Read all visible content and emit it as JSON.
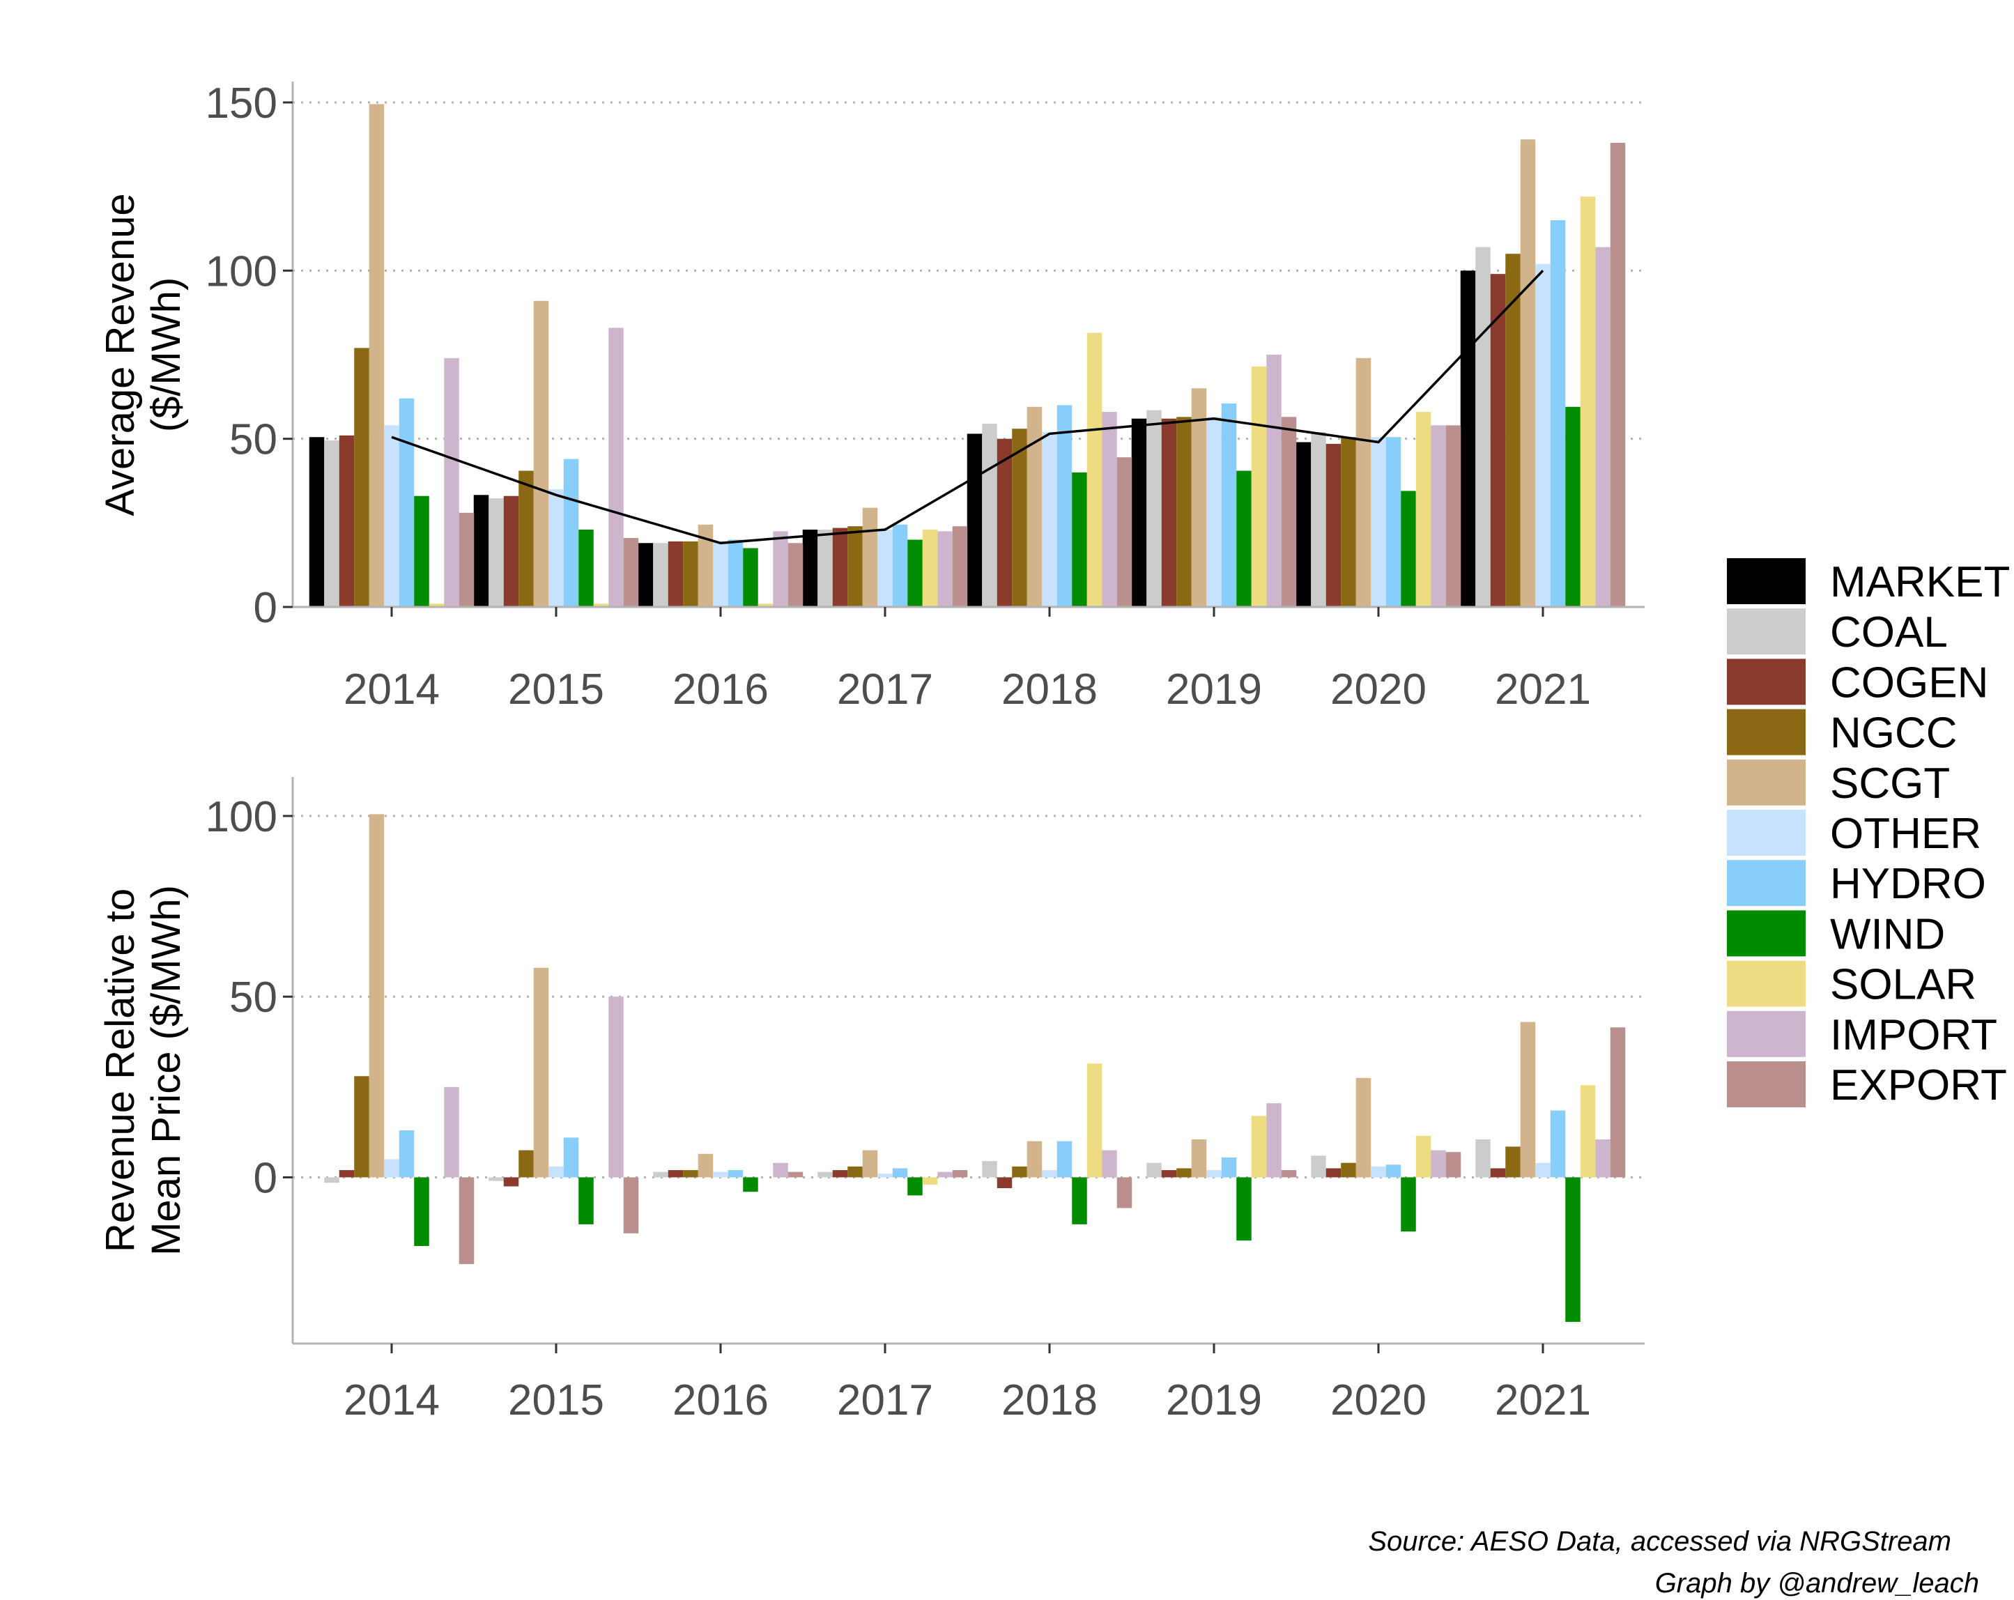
{
  "chart_data": [
    {
      "type": "bar",
      "ylabel_lines": [
        "Average Revenue",
        "($/MWh)"
      ],
      "categories": [
        "2014",
        "2015",
        "2016",
        "2017",
        "2018",
        "2019",
        "2020",
        "2021"
      ],
      "ylim": [
        0,
        150
      ],
      "yticks": [
        "0",
        "50",
        "100",
        "150"
      ],
      "ytick_values": [
        0,
        50,
        100,
        150
      ],
      "grid": "horizontal dotted",
      "series": [
        {
          "name": "MARKET",
          "color": "#000000",
          "values": [
            50.5,
            33.3,
            19.0,
            23.0,
            51.5,
            56.0,
            49.0,
            100.0
          ]
        },
        {
          "name": "COAL",
          "color": "#cccccc",
          "values": [
            49.5,
            32.3,
            19.0,
            23.0,
            54.5,
            58.5,
            52.0,
            107.0
          ]
        },
        {
          "name": "COGEN",
          "color": "#8b3a2e",
          "values": [
            51.0,
            33.0,
            19.5,
            23.5,
            50.0,
            56.0,
            48.5,
            99.0
          ]
        },
        {
          "name": "NGCC",
          "color": "#8b6914",
          "values": [
            77.0,
            40.5,
            19.5,
            24.0,
            53.0,
            56.5,
            50.5,
            105.0
          ]
        },
        {
          "name": "SCGT",
          "color": "#d2b48c",
          "values": [
            149.5,
            91.0,
            24.5,
            29.5,
            59.5,
            65.0,
            74.0,
            139.0
          ]
        },
        {
          "name": "OTHER",
          "color": "#c6e2ff",
          "values": [
            54.0,
            35.0,
            19.5,
            23.0,
            52.0,
            56.5,
            50.5,
            102.0
          ]
        },
        {
          "name": "HYDRO",
          "color": "#87cefa",
          "values": [
            62.0,
            44.0,
            20.0,
            24.5,
            60.0,
            60.5,
            50.5,
            115.0
          ]
        },
        {
          "name": "WIND",
          "color": "#008b00",
          "values": [
            33.0,
            23.0,
            17.5,
            20.0,
            40.0,
            40.5,
            34.5,
            59.5
          ]
        },
        {
          "name": "SOLAR",
          "color": "#eedc82",
          "values": [
            1.0,
            1.0,
            1.0,
            23.0,
            81.5,
            71.5,
            58.0,
            122.0
          ]
        },
        {
          "name": "IMPORT",
          "color": "#cdb5cd",
          "values": [
            74.0,
            83.0,
            22.5,
            22.5,
            58.0,
            75.0,
            54.0,
            107.0
          ]
        },
        {
          "name": "EXPORT",
          "color": "#bc8f8f",
          "values": [
            28.0,
            20.5,
            19.0,
            24.0,
            44.5,
            56.5,
            54.0,
            138.0
          ]
        }
      ],
      "line": {
        "name": "MARKET",
        "color": "#000000",
        "values": [
          50.5,
          33.3,
          19.0,
          23.0,
          51.5,
          56.0,
          49.0,
          100.0
        ]
      }
    },
    {
      "type": "bar",
      "ylabel_lines": [
        "Revenue Relative to",
        "Mean Price ($/MWh)"
      ],
      "categories": [
        "2014",
        "2015",
        "2016",
        "2017",
        "2018",
        "2019",
        "2020",
        "2021"
      ],
      "ylim": [
        -46,
        105
      ],
      "yticks": [
        "0",
        "50",
        "100"
      ],
      "ytick_values": [
        0,
        50,
        100
      ],
      "grid": "horizontal dotted",
      "series": [
        {
          "name": "MARKET",
          "color": "#000000",
          "values": [
            0,
            0,
            0,
            0,
            0,
            0,
            0,
            0
          ]
        },
        {
          "name": "COAL",
          "color": "#cccccc",
          "values": [
            -1.5,
            -1.0,
            1.5,
            1.5,
            4.5,
            4.0,
            6.0,
            10.5
          ]
        },
        {
          "name": "COGEN",
          "color": "#8b3a2e",
          "values": [
            2.0,
            -2.5,
            2.0,
            2.0,
            -3.0,
            2.0,
            2.5,
            2.5
          ]
        },
        {
          "name": "NGCC",
          "color": "#8b6914",
          "values": [
            28.0,
            7.5,
            2.0,
            3.0,
            3.0,
            2.5,
            4.0,
            8.5
          ]
        },
        {
          "name": "SCGT",
          "color": "#d2b48c",
          "values": [
            100.5,
            58.0,
            6.5,
            7.5,
            10.0,
            10.5,
            27.5,
            43.0
          ]
        },
        {
          "name": "OTHER",
          "color": "#c6e2ff",
          "values": [
            5.0,
            3.0,
            1.5,
            1.0,
            2.0,
            2.0,
            3.0,
            4.0
          ]
        },
        {
          "name": "HYDRO",
          "color": "#87cefa",
          "values": [
            13.0,
            11.0,
            2.0,
            2.5,
            10.0,
            5.5,
            3.5,
            18.5
          ]
        },
        {
          "name": "WIND",
          "color": "#008b00",
          "values": [
            -19.0,
            -13.0,
            -4.0,
            -5.0,
            -13.0,
            -17.5,
            -15.0,
            -40.0
          ]
        },
        {
          "name": "SOLAR",
          "color": "#eedc82",
          "values": [
            0,
            0,
            0,
            -2.0,
            31.5,
            17.0,
            11.5,
            25.5
          ]
        },
        {
          "name": "IMPORT",
          "color": "#cdb5cd",
          "values": [
            25.0,
            50.0,
            4.0,
            1.5,
            7.5,
            20.5,
            7.5,
            10.5
          ]
        },
        {
          "name": "EXPORT",
          "color": "#bc8f8f",
          "values": [
            -24.0,
            -15.5,
            1.5,
            2.0,
            -8.5,
            2.0,
            7.0,
            41.5
          ]
        }
      ]
    }
  ],
  "legend": {
    "placement": "right",
    "items": [
      {
        "label": "MARKET",
        "color": "#000000"
      },
      {
        "label": "COAL",
        "color": "#cccccc"
      },
      {
        "label": "COGEN",
        "color": "#8b3a2e"
      },
      {
        "label": "NGCC",
        "color": "#8b6914"
      },
      {
        "label": "SCGT",
        "color": "#d2b48c"
      },
      {
        "label": "OTHER",
        "color": "#c6e2ff"
      },
      {
        "label": "HYDRO",
        "color": "#87cefa"
      },
      {
        "label": "WIND",
        "color": "#008b00"
      },
      {
        "label": "SOLAR",
        "color": "#eedc82"
      },
      {
        "label": "IMPORT",
        "color": "#cdb5cd"
      },
      {
        "label": "EXPORT",
        "color": "#bc8f8f"
      }
    ]
  },
  "caption": {
    "source": "Source: AESO Data, accessed via NRGStream",
    "credit": "Graph by @andrew_leach"
  }
}
